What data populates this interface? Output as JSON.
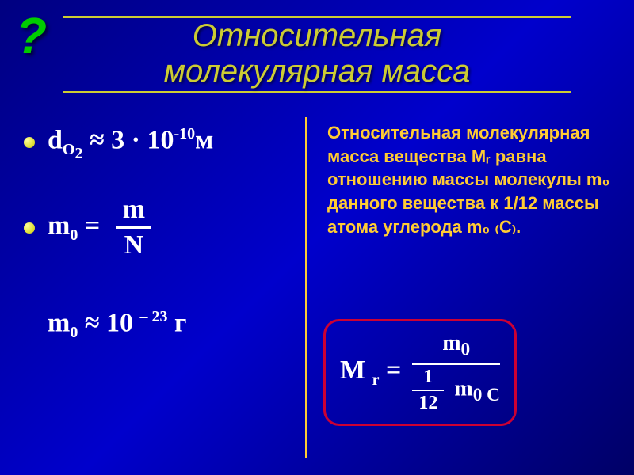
{
  "colors": {
    "title": "#cccc33",
    "formula": "#ffffff",
    "definition": "#ffcc33",
    "box_border": "#cc0033",
    "question": "#00cc00",
    "divider": "#ffcc33",
    "bg_gradient": [
      "#000080",
      "#0000cc",
      "#000066"
    ]
  },
  "typography": {
    "title_fontsize": 40,
    "formula_fontsize": 34,
    "definition_fontsize": 22,
    "title_style": "italic",
    "formula_family": "Times New Roman"
  },
  "question_mark": "?",
  "title": {
    "line1": "Относительная",
    "line2": "молекулярная масса"
  },
  "left": {
    "eq1_left": "d",
    "eq1_sub": "O",
    "eq1_subsub": "2",
    "eq1_approx": " ≈ 3 · 10",
    "eq1_sup": "-10",
    "eq1_unit": "м",
    "eq2_left": "m",
    "eq2_sub": "0",
    "eq2_eq": " = ",
    "eq2_num": "m",
    "eq2_den": "N",
    "eq3_left": "m",
    "eq3_sub": "0",
    "eq3_approx": " ≈ 10 ",
    "eq3_sup": "– 23",
    "eq3_unit": " г"
  },
  "right": {
    "definition": "Относительная молекулярная масса вещества Мᵣ равна отношению массы молекулы m₀ данного вещества к 1/12 массы атома углерода m₀ ₍C₎.",
    "mr_label": "M ",
    "mr_sub": "r",
    "mr_eq": " = ",
    "mr_num": "m",
    "mr_num_sub": "0",
    "mr_den_frac_num": "1",
    "mr_den_frac_den": "12",
    "mr_den_m": " m",
    "mr_den_m_sub": "0 C"
  }
}
